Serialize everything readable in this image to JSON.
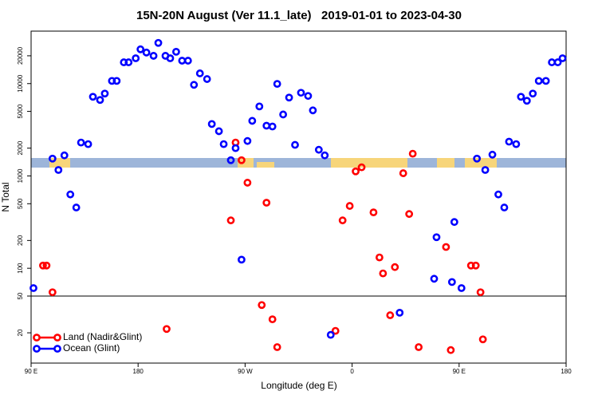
{
  "chart_data": {
    "type": "scatter",
    "title": "15N-20N August (Ver 11.1_late)   2019-01-01 to 2023-04-30",
    "x_label": "Longitude (deg E)",
    "y_label": "N Total",
    "xlim": [
      90,
      540
    ],
    "ylim": [
      9.4,
      37000
    ],
    "y_log": true,
    "hline": 50,
    "xticks": [
      {
        "value": 90,
        "label": "90 E"
      },
      {
        "value": 180,
        "label": "180"
      },
      {
        "value": 270,
        "label": "90 W"
      },
      {
        "value": 360,
        "label": "0"
      },
      {
        "value": 450,
        "label": "90 E"
      },
      {
        "value": 540,
        "label": "180"
      }
    ],
    "yticks": [
      20,
      50,
      100,
      200,
      500,
      1000,
      2000,
      5000,
      10000,
      20000
    ],
    "legend": "bottom-left",
    "series": [
      {
        "name": "Land (Nadir&Glint)",
        "color": "#ff0000",
        "x": [
          100,
          103,
          108,
          204,
          258,
          262,
          267,
          272,
          284,
          288,
          293,
          297,
          346,
          352,
          358,
          363,
          368,
          378,
          383,
          386,
          392,
          396,
          403,
          408,
          411,
          416,
          439,
          443,
          460,
          464,
          468,
          470
        ],
        "values": [
          107,
          107,
          55,
          22,
          330,
          2300,
          1480,
          845,
          40,
          513,
          28,
          14,
          21,
          330,
          473,
          1120,
          1240,
          403,
          131,
          88,
          31,
          103,
          1070,
          387,
          1740,
          14,
          170,
          13,
          107,
          107,
          55,
          17
        ]
      },
      {
        "name": "Ocean (Glint)",
        "color": "#0000ff",
        "x": [
          92,
          108,
          113,
          118,
          123,
          128,
          132,
          138,
          142,
          148,
          152,
          158,
          162,
          168,
          172,
          178,
          182,
          187,
          193,
          197,
          203,
          207,
          212,
          217,
          222,
          227,
          232,
          238,
          242,
          248,
          252,
          258,
          262,
          267,
          272,
          276,
          282,
          288,
          293,
          297,
          302,
          307,
          312,
          317,
          323,
          327,
          332,
          337,
          342,
          400,
          429,
          431,
          444,
          446,
          452,
          465,
          472,
          478,
          483,
          488,
          492,
          498,
          502,
          507,
          512,
          517,
          523,
          528,
          533,
          537
        ],
        "values": [
          61,
          1540,
          1160,
          1670,
          630,
          455,
          2300,
          2210,
          7200,
          6650,
          7800,
          10700,
          10700,
          17000,
          17000,
          18800,
          23500,
          21700,
          20000,
          27600,
          20000,
          18800,
          22100,
          17700,
          17700,
          9700,
          12900,
          11200,
          3650,
          3050,
          2210,
          1480,
          2000,
          124,
          2390,
          3950,
          5660,
          3500,
          3430,
          9930,
          4630,
          7060,
          2170,
          7960,
          7350,
          5130,
          1920,
          1670,
          19,
          33,
          77,
          217,
          71,
          317,
          61,
          1540,
          1160,
          1700,
          630,
          455,
          2350,
          2210,
          7200,
          6520,
          7800,
          10700,
          10700,
          17000,
          17000,
          18800
        ]
      }
    ]
  }
}
